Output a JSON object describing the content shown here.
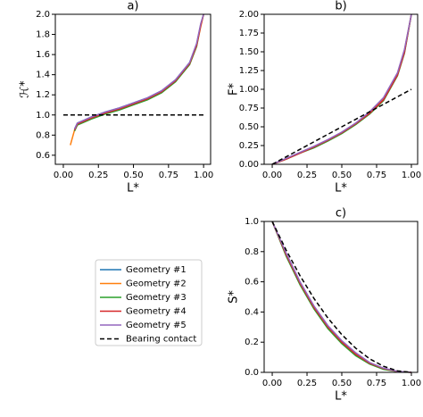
{
  "chart_data": [
    {
      "type": "line",
      "title": "a)",
      "xlabel": "L*",
      "ylabel": "ℋ*",
      "xlim": [
        -0.057,
        1.05
      ],
      "ylim": [
        0.51,
        2.0
      ],
      "xticks": [
        {
          "value": 0,
          "label": "0.00"
        },
        {
          "value": 0.25,
          "label": "0.25"
        },
        {
          "value": 0.5,
          "label": "0.50"
        },
        {
          "value": 0.75,
          "label": "0.75"
        },
        {
          "value": 1,
          "label": "1.00"
        }
      ],
      "yticks": [
        0.6,
        0.8,
        {
          "value": 1,
          "label": "1.0"
        },
        1.2,
        1.4,
        1.6,
        1.8,
        {
          "value": 2,
          "label": "2.0"
        }
      ],
      "series": [
        {
          "name": "Geometry #1",
          "color": "#1f77b4",
          "x": [
            0.05,
            0.08,
            0.1,
            0.15,
            0.2,
            0.3,
            0.4,
            0.5,
            0.6,
            0.7,
            0.8,
            0.9,
            0.95,
            0.98,
            1.0
          ],
          "values": [
            null,
            0.86,
            0.92,
            0.95,
            0.98,
            1.03,
            1.07,
            1.12,
            1.17,
            1.24,
            1.35,
            1.52,
            1.7,
            1.9,
            2.0
          ]
        },
        {
          "name": "Geometry #2",
          "color": "#ff7f0e",
          "x": [
            0.05,
            0.08,
            0.1,
            0.15,
            0.2,
            0.3,
            0.4,
            0.5,
            0.6,
            0.7,
            0.8,
            0.9,
            0.95,
            0.98,
            1.0
          ],
          "values": [
            0.7,
            0.85,
            0.9,
            0.94,
            0.97,
            1.02,
            1.06,
            1.11,
            1.16,
            1.23,
            1.34,
            1.5,
            1.68,
            1.88,
            2.0
          ]
        },
        {
          "name": "Geometry #3",
          "color": "#2ca02c",
          "x": [
            0.05,
            0.08,
            0.1,
            0.15,
            0.2,
            0.3,
            0.4,
            0.5,
            0.6,
            0.7,
            0.8,
            0.9,
            0.95,
            0.98,
            1.0
          ],
          "values": [
            null,
            0.84,
            0.9,
            0.93,
            0.96,
            1.01,
            1.05,
            1.1,
            1.15,
            1.22,
            1.33,
            1.5,
            1.68,
            1.9,
            2.0
          ]
        },
        {
          "name": "Geometry #4",
          "color": "#d62728",
          "x": [
            0.05,
            0.08,
            0.1,
            0.15,
            0.2,
            0.3,
            0.4,
            0.5,
            0.6,
            0.7,
            0.8,
            0.9,
            0.95,
            0.98,
            1.0
          ],
          "values": [
            null,
            0.85,
            0.91,
            0.94,
            0.97,
            1.02,
            1.06,
            1.11,
            1.16,
            1.23,
            1.34,
            1.51,
            1.69,
            1.89,
            2.0
          ]
        },
        {
          "name": "Geometry #5",
          "color": "#9467bd",
          "x": [
            0.05,
            0.08,
            0.1,
            0.15,
            0.2,
            0.3,
            0.4,
            0.5,
            0.6,
            0.7,
            0.8,
            0.9,
            0.95,
            0.98,
            1.0
          ],
          "values": [
            null,
            0.86,
            0.92,
            0.95,
            0.98,
            1.03,
            1.07,
            1.12,
            1.17,
            1.24,
            1.35,
            1.52,
            1.71,
            1.91,
            2.0
          ]
        },
        {
          "name": "Bearing contact",
          "color": "#000000",
          "dashed": true,
          "x": [
            0,
            1
          ],
          "values": [
            1,
            1
          ]
        }
      ]
    },
    {
      "type": "line",
      "title": "b)",
      "xlabel": "L*",
      "ylabel": "F*",
      "xlim": [
        -0.058,
        1.045
      ],
      "ylim": [
        0,
        2
      ],
      "xticks": [
        {
          "value": 0,
          "label": "0.00"
        },
        {
          "value": 0.25,
          "label": "0.25"
        },
        {
          "value": 0.5,
          "label": "0.50"
        },
        {
          "value": 0.75,
          "label": "0.75"
        },
        {
          "value": 1,
          "label": "1.00"
        }
      ],
      "yticks": [
        {
          "value": 0,
          "label": "0.00"
        },
        {
          "value": 0.25,
          "label": "0.25"
        },
        {
          "value": 0.5,
          "label": "0.50"
        },
        {
          "value": 0.75,
          "label": "0.75"
        },
        {
          "value": 1,
          "label": "1.00"
        },
        {
          "value": 1.25,
          "label": "1.25"
        },
        {
          "value": 1.5,
          "label": "1.50"
        },
        {
          "value": 1.75,
          "label": "1.75"
        },
        {
          "value": 2,
          "label": "2.00"
        }
      ],
      "series": [
        {
          "color": "#1f77b4",
          "x": [
            0,
            0.1,
            0.2,
            0.3,
            0.4,
            0.5,
            0.6,
            0.7,
            0.8,
            0.9,
            0.95,
            1.0
          ],
          "values": [
            0,
            0.07,
            0.15,
            0.23,
            0.32,
            0.42,
            0.54,
            0.68,
            0.87,
            1.2,
            1.5,
            2.0
          ]
        },
        {
          "color": "#ff7f0e",
          "x": [
            0,
            0.1,
            0.2,
            0.3,
            0.4,
            0.5,
            0.6,
            0.7,
            0.8,
            0.9,
            0.95,
            1.0
          ],
          "values": [
            0,
            0.07,
            0.15,
            0.23,
            0.32,
            0.42,
            0.54,
            0.68,
            0.87,
            1.21,
            1.52,
            2.0
          ]
        },
        {
          "color": "#2ca02c",
          "x": [
            0,
            0.1,
            0.2,
            0.3,
            0.4,
            0.5,
            0.6,
            0.7,
            0.8,
            0.9,
            0.95,
            1.0
          ],
          "values": [
            0,
            0.07,
            0.15,
            0.22,
            0.31,
            0.41,
            0.53,
            0.67,
            0.85,
            1.18,
            1.48,
            2.0
          ]
        },
        {
          "color": "#d62728",
          "x": [
            0,
            0.1,
            0.2,
            0.3,
            0.4,
            0.5,
            0.6,
            0.7,
            0.8,
            0.9,
            0.95,
            1.0
          ],
          "values": [
            0,
            0.07,
            0.15,
            0.23,
            0.32,
            0.42,
            0.54,
            0.68,
            0.86,
            1.19,
            1.49,
            2.0
          ]
        },
        {
          "color": "#9467bd",
          "x": [
            0,
            0.1,
            0.2,
            0.3,
            0.4,
            0.5,
            0.6,
            0.7,
            0.8,
            0.9,
            0.95,
            1.0
          ],
          "values": [
            0,
            0.08,
            0.16,
            0.24,
            0.33,
            0.43,
            0.55,
            0.7,
            0.89,
            1.22,
            1.53,
            2.0
          ]
        },
        {
          "color": "#000000",
          "dashed": true,
          "x": [
            0,
            1
          ],
          "values": [
            0,
            1
          ]
        }
      ]
    },
    {
      "type": "line",
      "title": "c)",
      "xlabel": "L*",
      "ylabel": "S*",
      "xlim": [
        -0.058,
        1.045
      ],
      "ylim": [
        0,
        1
      ],
      "xticks": [
        {
          "value": 0,
          "label": "0.00"
        },
        {
          "value": 0.25,
          "label": "0.25"
        },
        {
          "value": 0.5,
          "label": "0.50"
        },
        {
          "value": 0.75,
          "label": "0.75"
        },
        {
          "value": 1,
          "label": "1.00"
        }
      ],
      "yticks": [
        {
          "value": 0,
          "label": "0.0"
        },
        0.2,
        0.4,
        0.6,
        0.8,
        {
          "value": 1,
          "label": "1.0"
        }
      ],
      "series": [
        {
          "color": "#1f77b4",
          "x": [
            0,
            0.1,
            0.2,
            0.3,
            0.4,
            0.5,
            0.6,
            0.7,
            0.8,
            0.9,
            1.0
          ],
          "values": [
            1,
            0.78,
            0.59,
            0.43,
            0.3,
            0.2,
            0.12,
            0.06,
            0.025,
            0.006,
            0
          ]
        },
        {
          "color": "#ff7f0e",
          "x": [
            0,
            0.1,
            0.2,
            0.3,
            0.4,
            0.5,
            0.6,
            0.7,
            0.8,
            0.9,
            1.0
          ],
          "values": [
            1,
            0.78,
            0.59,
            0.43,
            0.3,
            0.2,
            0.12,
            0.06,
            0.025,
            0.006,
            0
          ]
        },
        {
          "color": "#2ca02c",
          "x": [
            0,
            0.1,
            0.2,
            0.3,
            0.4,
            0.5,
            0.6,
            0.7,
            0.8,
            0.9,
            1.0
          ],
          "values": [
            1,
            0.77,
            0.58,
            0.42,
            0.29,
            0.19,
            0.11,
            0.055,
            0.02,
            0.005,
            0
          ]
        },
        {
          "color": "#d62728",
          "x": [
            0,
            0.1,
            0.2,
            0.3,
            0.4,
            0.5,
            0.6,
            0.7,
            0.8,
            0.9,
            1.0
          ],
          "values": [
            1,
            0.78,
            0.59,
            0.43,
            0.3,
            0.2,
            0.12,
            0.06,
            0.025,
            0.006,
            0
          ]
        },
        {
          "color": "#9467bd",
          "x": [
            0,
            0.1,
            0.2,
            0.3,
            0.4,
            0.5,
            0.6,
            0.7,
            0.8,
            0.9,
            1.0
          ],
          "values": [
            1,
            0.79,
            0.6,
            0.44,
            0.31,
            0.21,
            0.13,
            0.065,
            0.028,
            0.007,
            0
          ]
        },
        {
          "color": "#000000",
          "dashed": true,
          "x": [
            0,
            0.1,
            0.2,
            0.3,
            0.4,
            0.5,
            0.6,
            0.7,
            0.8,
            0.9,
            1.0
          ],
          "values": [
            1,
            0.81,
            0.64,
            0.49,
            0.36,
            0.25,
            0.16,
            0.09,
            0.04,
            0.01,
            0
          ]
        }
      ]
    }
  ]
}
